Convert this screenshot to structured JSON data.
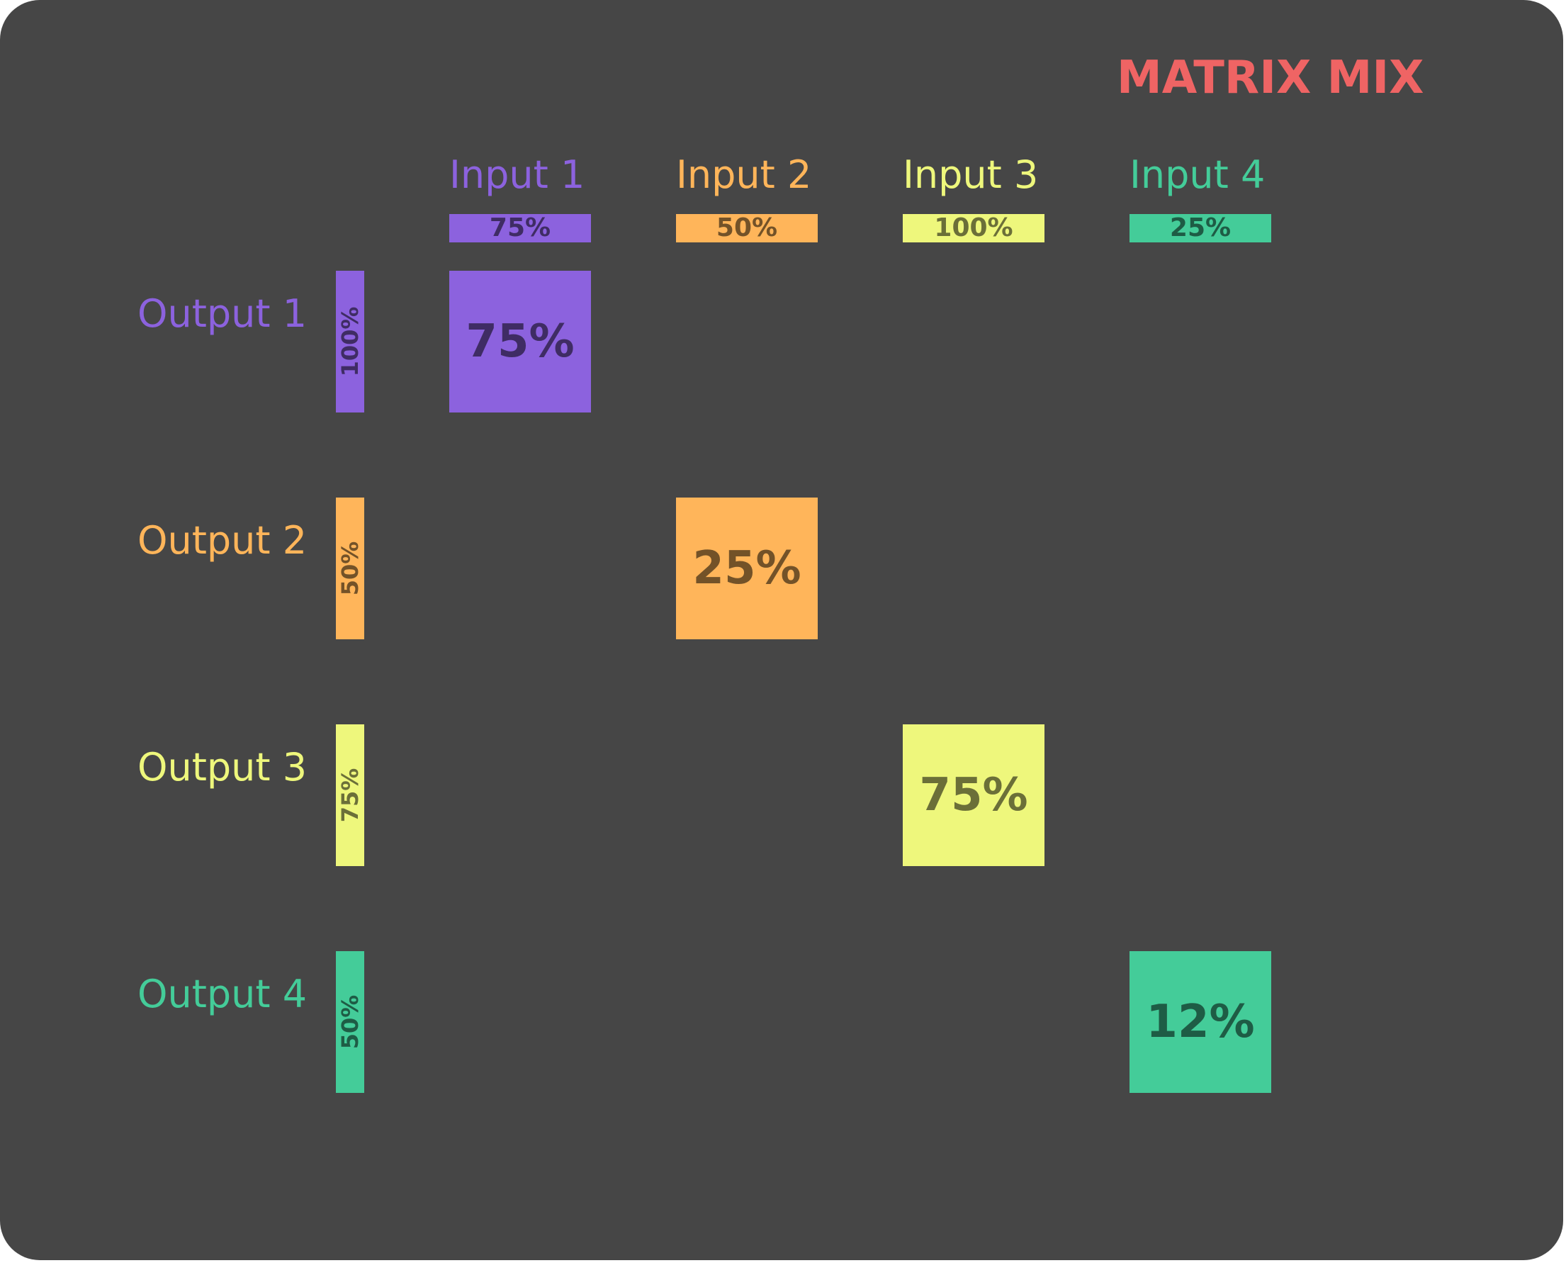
{
  "title": "MATRIX MIX",
  "colors": {
    "background": "#464646",
    "title": "#ef6464",
    "channel_1": "#8c62de",
    "channel_2": "#ffb55a",
    "channel_3": "#eef77c",
    "channel_4": "#44cc99"
  },
  "inputs": [
    {
      "label": "Input 1",
      "level": "75%",
      "color": "#8c62de"
    },
    {
      "label": "Input 2",
      "level": "50%",
      "color": "#ffb55a"
    },
    {
      "label": "Input 3",
      "level": "100%",
      "color": "#eef77c"
    },
    {
      "label": "Input 4",
      "level": "25%",
      "color": "#44cc99"
    }
  ],
  "outputs": [
    {
      "label": "Output 1",
      "level": "100%",
      "color": "#8c62de"
    },
    {
      "label": "Output 2",
      "level": "50%",
      "color": "#ffb55a"
    },
    {
      "label": "Output 3",
      "level": "75%",
      "color": "#eef77c"
    },
    {
      "label": "Output 4",
      "level": "50%",
      "color": "#44cc99"
    }
  ],
  "matrix": [
    {
      "output": 1,
      "input": 1,
      "value": "75%",
      "color": "#8c62de"
    },
    {
      "output": 2,
      "input": 2,
      "value": "25%",
      "color": "#ffb55a"
    },
    {
      "output": 3,
      "input": 3,
      "value": "75%",
      "color": "#eef77c"
    },
    {
      "output": 4,
      "input": 4,
      "value": "12%",
      "color": "#44cc99"
    }
  ]
}
